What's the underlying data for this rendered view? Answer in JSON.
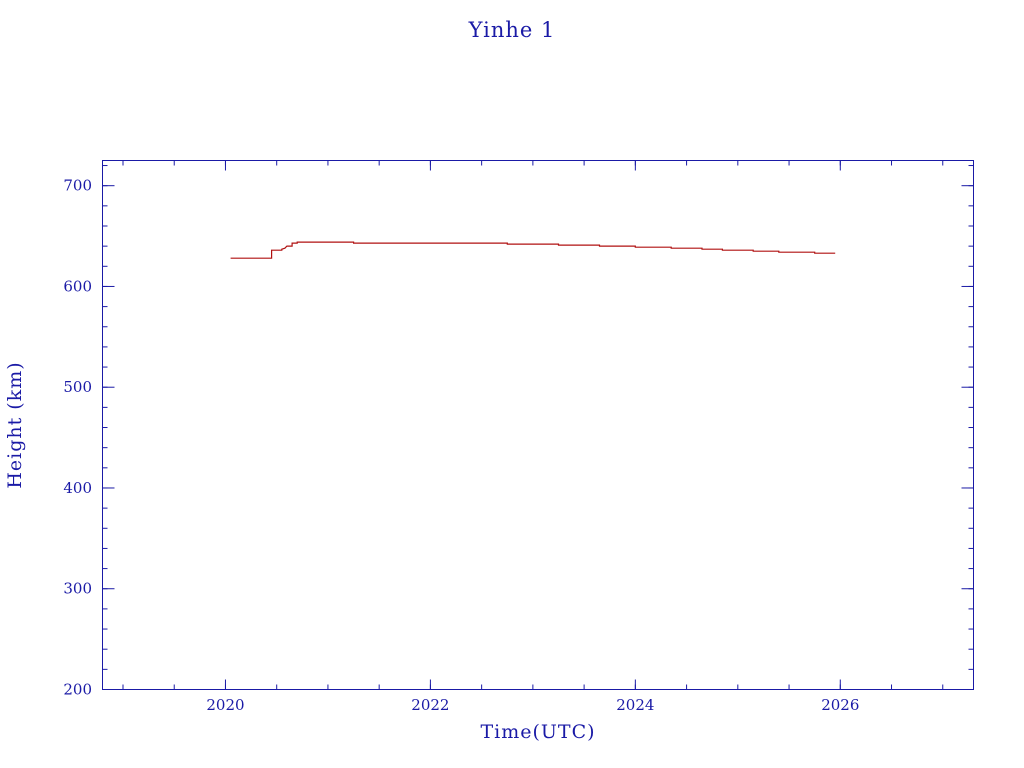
{
  "chart_data": {
    "type": "line",
    "title": "Yinhe 1",
    "xlabel": "Time(UTC)",
    "ylabel": "Height (km)",
    "xlim": [
      2018.8,
      2027.3
    ],
    "ylim": [
      200,
      725
    ],
    "x_ticks": [
      2020,
      2022,
      2024,
      2026
    ],
    "x_tick_labels": [
      "2020",
      "2022",
      "2024",
      "2026"
    ],
    "y_ticks": [
      200,
      300,
      400,
      500,
      600,
      700
    ],
    "y_tick_labels": [
      "200",
      "300",
      "400",
      "500",
      "600",
      "700"
    ],
    "x_minor_step": 0.5,
    "y_minor_step": 20,
    "grid": false,
    "legend": "none",
    "colors": {
      "axes": "#1a1aa6",
      "series": "#b01010",
      "background": "#ffffff"
    },
    "series": [
      {
        "x": [
          2020.05,
          2020.45,
          2020.45,
          2020.55,
          2020.55,
          2020.58,
          2020.6,
          2020.65,
          2020.65,
          2020.7,
          2020.7,
          2021.25,
          2021.25,
          2022.75,
          2022.75,
          2023.25,
          2023.25,
          2023.65,
          2023.65,
          2024.0,
          2024.0,
          2024.35,
          2024.35,
          2024.65,
          2024.65,
          2024.85,
          2024.85,
          2025.15,
          2025.15,
          2025.4,
          2025.4,
          2025.75,
          2025.75,
          2025.95
        ],
        "y": [
          628,
          628,
          636,
          636,
          637,
          638,
          640,
          640,
          643,
          643,
          644,
          644,
          643,
          643,
          642,
          642,
          641,
          641,
          640,
          640,
          639,
          639,
          638,
          638,
          637,
          637,
          636,
          636,
          635,
          635,
          634,
          634,
          633,
          633
        ]
      }
    ]
  }
}
